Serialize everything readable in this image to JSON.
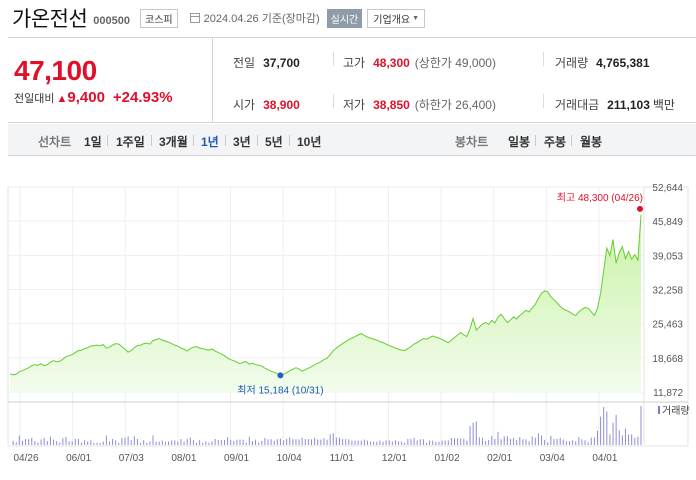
{
  "header": {
    "name": "가온전선",
    "code": "000500",
    "market": "코스피",
    "date": "2024.04.26 기준(장마감)",
    "realtime": "실시간",
    "company_info": "기업개요"
  },
  "quote": {
    "price": "47,100",
    "change_label": "전일대비",
    "change_arrow": "▲",
    "change_value": "9,400",
    "change_pct": "+24.93%",
    "prev_close_label": "전일",
    "prev_close": "37,700",
    "high_label": "고가",
    "high": "48,300",
    "upper_limit": "(상한가 49,000)",
    "volume_label": "거래량",
    "volume": "4,765,381",
    "open_label": "시가",
    "open": "38,900",
    "low_label": "저가",
    "low": "38,850",
    "lower_limit": "(하한가 26,400)",
    "value_label": "거래대금",
    "value": "211,103",
    "value_unit": "백만"
  },
  "period_bar": {
    "line_chart_label": "선차트",
    "line_periods": [
      "1일",
      "1주일",
      "3개월",
      "1년",
      "3년",
      "5년",
      "10년"
    ],
    "active_period": "1년",
    "candle_chart_label": "봉차트",
    "candle_periods": [
      "일봉",
      "주봉",
      "월봉"
    ]
  },
  "colors": {
    "up": "#e0102b",
    "active": "#1e58b8",
    "line": "#66cc33",
    "area_top": "#c9f2a6",
    "area_bottom": "#f2fcec",
    "low_dot": "#1f63c6"
  },
  "chart_data": {
    "type": "area",
    "x_tick_labels": [
      "04/26",
      "06/01",
      "07/03",
      "08/01",
      "09/01",
      "10/04",
      "11/01",
      "12/01",
      "01/02",
      "02/01",
      "03/04",
      "04/01"
    ],
    "y_tick_labels": [
      "52,644",
      "45,849",
      "39,053",
      "32,258",
      "25,463",
      "18,668",
      "11,872"
    ],
    "ylim": [
      11872,
      52644
    ],
    "high_label": "최고 48,300 (04/26)",
    "high_value": 48300,
    "low_label": "최저 15,184 (10/31)",
    "low_value": 15184,
    "volume_legend": "거래량",
    "values": [
      15500,
      15300,
      15400,
      15900,
      16100,
      16400,
      16700,
      17100,
      17300,
      17200,
      17500,
      17100,
      17300,
      17800,
      18100,
      17900,
      18000,
      18400,
      18900,
      19100,
      19300,
      19700,
      20100,
      20200,
      20500,
      20700,
      21000,
      21100,
      21200,
      21100,
      21300,
      20600,
      20800,
      21200,
      21500,
      21400,
      20900,
      20400,
      19800,
      20100,
      20700,
      21100,
      21200,
      21500,
      21600,
      21400,
      22100,
      22300,
      22500,
      22200,
      22000,
      21800,
      21500,
      21200,
      21000,
      20600,
      20400,
      20000,
      20500,
      20800,
      20900,
      20600,
      20500,
      20300,
      20200,
      20400,
      20000,
      19700,
      19400,
      19100,
      18600,
      18300,
      18100,
      17800,
      17500,
      17800,
      17900,
      17400,
      17600,
      17300,
      17200,
      17000,
      16600,
      16300,
      16000,
      15800,
      15500,
      15184,
      15400,
      15700,
      16100,
      16400,
      16700,
      16400,
      16000,
      16300,
      16600,
      16900,
      17300,
      17600,
      17900,
      18300,
      18600,
      19300,
      20100,
      20600,
      21100,
      21500,
      21900,
      22300,
      22600,
      22900,
      23200,
      23500,
      23100,
      22800,
      22600,
      22400,
      22200,
      21900,
      21700,
      21400,
      21100,
      20900,
      20600,
      20400,
      20200,
      20100,
      20500,
      20900,
      21400,
      21700,
      22100,
      22500,
      22400,
      22700,
      23000,
      22800,
      22600,
      22300,
      22000,
      21700,
      22200,
      22700,
      23200,
      23700,
      23200,
      22900,
      24500,
      26500,
      24200,
      24800,
      25400,
      25700,
      25300,
      26100,
      25600,
      26800,
      27300,
      26500,
      25700,
      26200,
      26800,
      26400,
      27100,
      27600,
      28100,
      27800,
      28600,
      29300,
      30500,
      31500,
      32000,
      31800,
      30800,
      30200,
      29600,
      28900,
      28400,
      28100,
      27800,
      27400,
      27100,
      27800,
      28300,
      28700,
      28500,
      27800,
      27100,
      28500,
      31500,
      36000,
      40500,
      39000,
      42200,
      37500,
      39500,
      40800,
      38400,
      39800,
      38300,
      39200,
      38100,
      47100
    ]
  }
}
